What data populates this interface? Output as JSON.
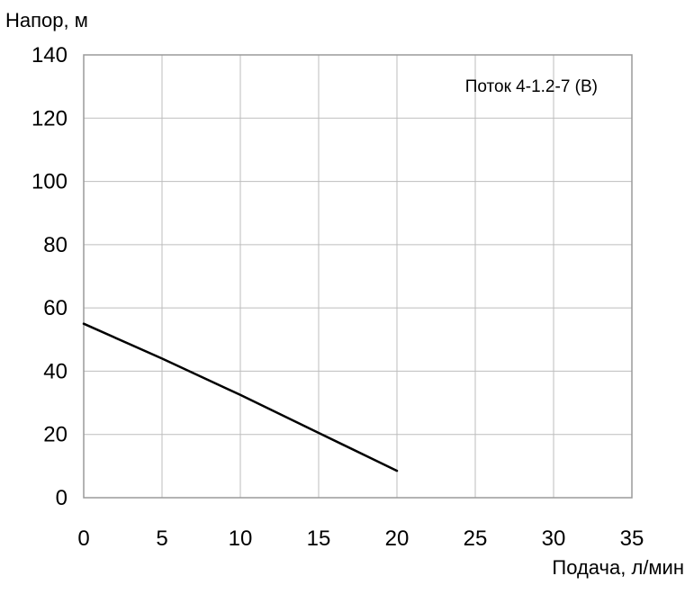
{
  "chart_data": {
    "type": "line",
    "title": "",
    "xlabel": "Подача, л/мин",
    "ylabel": "Напор, м",
    "xlim": [
      0,
      35
    ],
    "ylim": [
      0,
      140
    ],
    "x_ticks": [
      0,
      5,
      10,
      15,
      20,
      25,
      30,
      35
    ],
    "y_ticks": [
      0,
      20,
      40,
      60,
      80,
      100,
      120,
      140
    ],
    "grid": true,
    "legend_position": "top-right",
    "series": [
      {
        "name": "Поток 4-1.2-7 (В)",
        "color": "#000000",
        "x": [
          0,
          5,
          10,
          15,
          20
        ],
        "y": [
          55,
          44,
          32.5,
          20.5,
          8.5
        ]
      }
    ]
  }
}
